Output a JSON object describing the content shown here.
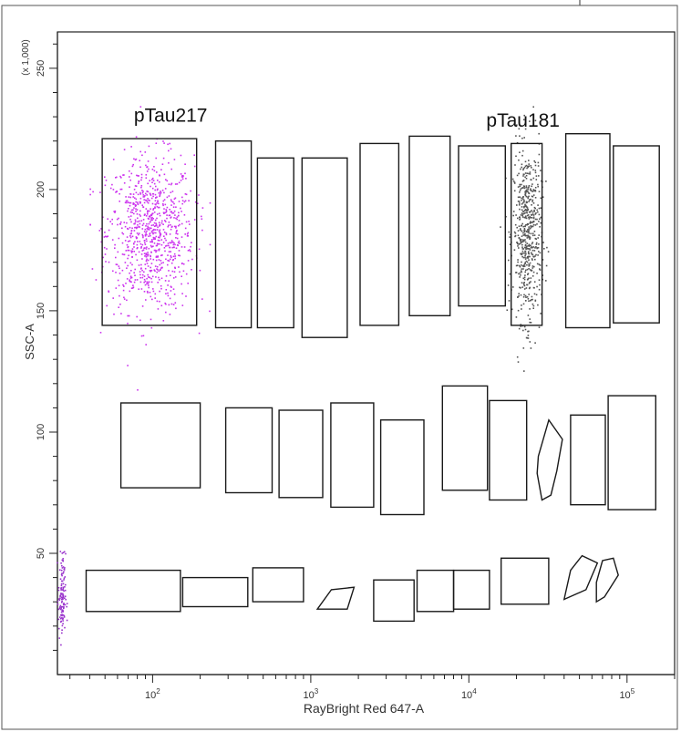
{
  "chart_data": {
    "type": "scatter",
    "title": "",
    "xlabel": "RayBright Red 647-A",
    "ylabel": "SSC-A",
    "y_multiplier_label": "(x 1,000)",
    "x_scale": "log",
    "xlim": [
      25,
      200000
    ],
    "ylim": [
      0,
      265
    ],
    "grid": false,
    "x_ticks": [
      {
        "value": 100,
        "label": "10",
        "exp": "2"
      },
      {
        "value": 1000,
        "label": "10",
        "exp": "3"
      },
      {
        "value": 10000,
        "label": "10",
        "exp": "4"
      },
      {
        "value": 100000,
        "label": "10",
        "exp": "5"
      }
    ],
    "y_ticks": [
      {
        "value": 50,
        "label": "50"
      },
      {
        "value": 100,
        "label": "100"
      },
      {
        "value": 150,
        "label": "150"
      },
      {
        "value": 200,
        "label": "200"
      },
      {
        "value": 250,
        "label": "250"
      }
    ],
    "annotations": [
      {
        "text": "pTau217",
        "x": 130,
        "y": 228
      },
      {
        "text": "pTau181",
        "x": 22000,
        "y": 226
      }
    ],
    "populations": [
      {
        "name": "pTau217",
        "color": "#cc33ee",
        "x_range": [
          48,
          190
        ],
        "y_center": 182,
        "y_spread": 16,
        "n": 900
      },
      {
        "name": "pTau181",
        "color": "#555555",
        "x_range": [
          18500,
          29000
        ],
        "y_center": 182,
        "y_spread": 18,
        "n": 600
      },
      {
        "name": "axis-pileup",
        "color": "#9933cc",
        "x_range": [
          25,
          28
        ],
        "y_center": 32,
        "y_spread": 9,
        "n": 120
      }
    ],
    "gates": [
      {
        "shape": "rect",
        "x": [
          48,
          190
        ],
        "y": [
          144,
          221
        ]
      },
      {
        "shape": "rect",
        "x": [
          250,
          420
        ],
        "y": [
          143,
          220
        ]
      },
      {
        "shape": "rect",
        "x": [
          460,
          780
        ],
        "y": [
          143,
          213
        ]
      },
      {
        "shape": "rect",
        "x": [
          880,
          1700
        ],
        "y": [
          139,
          213
        ]
      },
      {
        "shape": "rect",
        "x": [
          2050,
          3600
        ],
        "y": [
          144,
          219
        ]
      },
      {
        "shape": "rect",
        "x": [
          4200,
          7600
        ],
        "y": [
          148,
          222
        ]
      },
      {
        "shape": "rect",
        "x": [
          8600,
          17000
        ],
        "y": [
          152,
          218
        ]
      },
      {
        "shape": "rect",
        "x": [
          18500,
          29000
        ],
        "y": [
          144,
          219
        ]
      },
      {
        "shape": "rect",
        "x": [
          41000,
          78000
        ],
        "y": [
          143,
          223
        ]
      },
      {
        "shape": "rect",
        "x": [
          82000,
          160000
        ],
        "y": [
          145,
          218
        ]
      },
      {
        "shape": "rect",
        "x": [
          63,
          200
        ],
        "y": [
          77,
          112
        ]
      },
      {
        "shape": "rect",
        "x": [
          290,
          570
        ],
        "y": [
          75,
          110
        ]
      },
      {
        "shape": "rect",
        "x": [
          630,
          1190
        ],
        "y": [
          73,
          109
        ]
      },
      {
        "shape": "rect",
        "x": [
          1340,
          2500
        ],
        "y": [
          69,
          112
        ]
      },
      {
        "shape": "rect",
        "x": [
          2770,
          5200
        ],
        "y": [
          66,
          105
        ]
      },
      {
        "shape": "rect",
        "x": [
          6800,
          13100
        ],
        "y": [
          76,
          119
        ]
      },
      {
        "shape": "rect",
        "x": [
          13500,
          23200
        ],
        "y": [
          72,
          113
        ]
      },
      {
        "shape": "rect",
        "x": [
          44000,
          73000
        ],
        "y": [
          70,
          107
        ]
      },
      {
        "shape": "rect",
        "x": [
          76000,
          152000
        ],
        "y": [
          68,
          115
        ]
      },
      {
        "shape": "rect",
        "x": [
          38,
          150
        ],
        "y": [
          26,
          43
        ]
      },
      {
        "shape": "rect",
        "x": [
          155,
          400
        ],
        "y": [
          28,
          40
        ]
      },
      {
        "shape": "rect",
        "x": [
          430,
          900
        ],
        "y": [
          30,
          44
        ]
      },
      {
        "shape": "rect",
        "x": [
          2500,
          4500
        ],
        "y": [
          22,
          39
        ]
      },
      {
        "shape": "rect",
        "x": [
          4700,
          8000
        ],
        "y": [
          26,
          43
        ]
      },
      {
        "shape": "rect",
        "x": [
          8000,
          13500
        ],
        "y": [
          27,
          43
        ]
      },
      {
        "shape": "rect",
        "x": [
          16000,
          32000
        ],
        "y": [
          29,
          48
        ]
      },
      {
        "shape": "poly",
        "points": [
          [
            1100,
            27
          ],
          [
            1700,
            27
          ],
          [
            1880,
            36
          ],
          [
            1350,
            35
          ]
        ]
      },
      {
        "shape": "poly",
        "points": [
          [
            27500,
            90
          ],
          [
            32000,
            105
          ],
          [
            39000,
            97
          ],
          [
            36000,
            84
          ],
          [
            33000,
            74
          ],
          [
            29000,
            72
          ],
          [
            27000,
            83
          ]
        ]
      },
      {
        "shape": "poly",
        "points": [
          [
            40000,
            31
          ],
          [
            55000,
            35
          ],
          [
            65000,
            46
          ],
          [
            52000,
            49
          ],
          [
            44000,
            43
          ]
        ]
      },
      {
        "shape": "poly",
        "points": [
          [
            64000,
            30
          ],
          [
            72000,
            32
          ],
          [
            88000,
            41
          ],
          [
            82000,
            48
          ],
          [
            70000,
            47
          ],
          [
            64000,
            38
          ]
        ]
      }
    ]
  }
}
